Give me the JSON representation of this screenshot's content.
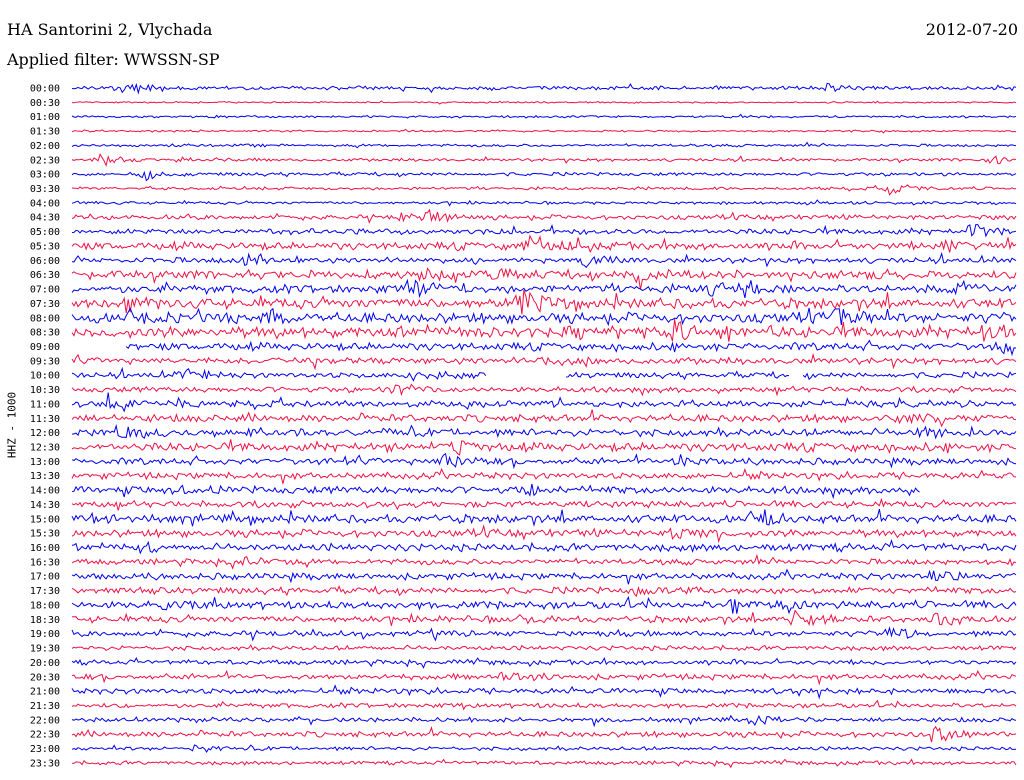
{
  "header": {
    "station": "HA Santorini 2, Vlychada",
    "filter": "Applied filter: WWSSN-SP",
    "date": "2012-07-20"
  },
  "chart_data": {
    "type": "line",
    "title": "HA Santorini 2, Vlychada",
    "subtitle": "Applied filter: WWSSN-SP",
    "date": "2012-07-20",
    "ylabel": "HHZ - 1000",
    "trace_labels": [
      "00:00",
      "00:30",
      "01:00",
      "01:30",
      "02:00",
      "02:30",
      "03:00",
      "03:30",
      "04:00",
      "04:30",
      "05:00",
      "05:30",
      "06:00",
      "06:30",
      "07:00",
      "07:30",
      "08:00",
      "08:30",
      "09:00",
      "09:30",
      "10:00",
      "10:30",
      "11:00",
      "11:30",
      "12:00",
      "12:30",
      "13:00",
      "13:30",
      "14:00",
      "14:30",
      "15:00",
      "15:30",
      "16:00",
      "16:30",
      "17:00",
      "17:30",
      "18:00",
      "18:30",
      "19:00",
      "19:30",
      "20:00",
      "20:30",
      "21:00",
      "21:30",
      "22:00",
      "22:30",
      "23:00",
      "23:30"
    ],
    "series_colors": [
      "#0000ee",
      "#ee1144"
    ],
    "trace_minutes": 30,
    "noise_level": [
      0.2,
      0.08,
      0.12,
      0.1,
      0.14,
      0.16,
      0.18,
      0.16,
      0.15,
      0.25,
      0.3,
      0.4,
      0.3,
      0.45,
      0.45,
      0.55,
      0.55,
      0.6,
      0.4,
      0.35,
      0.3,
      0.3,
      0.35,
      0.4,
      0.4,
      0.45,
      0.35,
      0.35,
      0.4,
      0.35,
      0.45,
      0.4,
      0.4,
      0.3,
      0.35,
      0.35,
      0.4,
      0.35,
      0.3,
      0.25,
      0.25,
      0.3,
      0.3,
      0.25,
      0.25,
      0.3,
      0.2,
      0.2
    ],
    "events": [
      {
        "trace": "00:00",
        "minute": 1.4,
        "amp": 0.5
      },
      {
        "trace": "00:00",
        "minute": 2.2,
        "amp": 0.35
      },
      {
        "trace": "00:00",
        "minute": 24.0,
        "amp": 0.3
      },
      {
        "trace": "02:30",
        "minute": 0.9,
        "amp": 0.7
      },
      {
        "trace": "02:30",
        "minute": 3.5,
        "amp": 0.35
      },
      {
        "trace": "02:30",
        "minute": 29.2,
        "amp": 0.5
      },
      {
        "trace": "03:00",
        "minute": 2.2,
        "amp": 0.45
      },
      {
        "trace": "03:30",
        "minute": 26.0,
        "amp": 0.6
      },
      {
        "trace": "04:30",
        "minute": 10.5,
        "amp": 0.5
      },
      {
        "trace": "04:30",
        "minute": 11.4,
        "amp": 0.5
      },
      {
        "trace": "05:00",
        "minute": 28.6,
        "amp": 0.7
      },
      {
        "trace": "05:30",
        "minute": 14.5,
        "amp": 1.1
      },
      {
        "trace": "05:30",
        "minute": 27.8,
        "amp": 0.5
      },
      {
        "trace": "06:00",
        "minute": 5.6,
        "amp": 0.6
      },
      {
        "trace": "06:00",
        "minute": 16.3,
        "amp": 0.6
      },
      {
        "trace": "06:30",
        "minute": 11.0,
        "amp": 0.6
      },
      {
        "trace": "06:30",
        "minute": 13.6,
        "amp": 0.6
      },
      {
        "trace": "06:30",
        "minute": 18.0,
        "amp": 0.6
      },
      {
        "trace": "06:30",
        "minute": 25.7,
        "amp": 0.5
      },
      {
        "trace": "07:00",
        "minute": 10.9,
        "amp": 0.5
      },
      {
        "trace": "07:00",
        "minute": 20.3,
        "amp": 0.6
      },
      {
        "trace": "07:00",
        "minute": 21.3,
        "amp": 0.5
      },
      {
        "trace": "07:00",
        "minute": 28.0,
        "amp": 0.6
      },
      {
        "trace": "07:30",
        "minute": 1.7,
        "amp": 0.5
      },
      {
        "trace": "07:30",
        "minute": 14.2,
        "amp": 1.6
      },
      {
        "trace": "08:00",
        "minute": 6.2,
        "amp": 0.7
      },
      {
        "trace": "08:00",
        "minute": 24.3,
        "amp": 0.8
      },
      {
        "trace": "08:30",
        "minute": 19.2,
        "amp": 0.9
      },
      {
        "trace": "08:30",
        "minute": 20.8,
        "amp": 0.5
      },
      {
        "trace": "08:30",
        "minute": 29.0,
        "amp": 0.6
      },
      {
        "trace": "09:00",
        "minute": 29.5,
        "amp": 0.6
      },
      {
        "trace": "09:30",
        "minute": 15.0,
        "amp": 0.5
      },
      {
        "trace": "10:00",
        "minute": 3.6,
        "amp": 0.6
      },
      {
        "trace": "10:00",
        "minute": 10.9,
        "amp": 0.5
      },
      {
        "trace": "10:30",
        "minute": 10.3,
        "amp": 0.5
      },
      {
        "trace": "11:00",
        "minute": 1.2,
        "amp": 0.5
      },
      {
        "trace": "11:00",
        "minute": 3.4,
        "amp": 0.4
      },
      {
        "trace": "11:30",
        "minute": 26.2,
        "amp": 0.4
      },
      {
        "trace": "12:00",
        "minute": 1.6,
        "amp": 0.5
      },
      {
        "trace": "12:00",
        "minute": 27.0,
        "amp": 0.6
      },
      {
        "trace": "12:30",
        "minute": 12.2,
        "amp": 0.4
      },
      {
        "trace": "13:00",
        "minute": 11.8,
        "amp": 0.6
      },
      {
        "trace": "13:00",
        "minute": 19.2,
        "amp": 0.4
      },
      {
        "trace": "14:00",
        "minute": 14.4,
        "amp": 0.8
      },
      {
        "trace": "14:00",
        "minute": 3.0,
        "amp": 0.3
      },
      {
        "trace": "15:00",
        "minute": 0.7,
        "amp": 0.5
      },
      {
        "trace": "15:00",
        "minute": 22.0,
        "amp": 0.5
      },
      {
        "trace": "15:30",
        "minute": 19.0,
        "amp": 0.6
      },
      {
        "trace": "16:00",
        "minute": 2.2,
        "amp": 0.4
      },
      {
        "trace": "16:30",
        "minute": 5.5,
        "amp": 0.4
      },
      {
        "trace": "17:00",
        "minute": 27.4,
        "amp": 0.6
      },
      {
        "trace": "17:30",
        "minute": 18.0,
        "amp": 0.5
      },
      {
        "trace": "18:00",
        "minute": 3.0,
        "amp": 0.6
      },
      {
        "trace": "18:00",
        "minute": 21.0,
        "amp": 0.6
      },
      {
        "trace": "18:00",
        "minute": 22.8,
        "amp": 0.4
      },
      {
        "trace": "18:30",
        "minute": 23.0,
        "amp": 0.8
      },
      {
        "trace": "18:30",
        "minute": 14.0,
        "amp": 0.5
      },
      {
        "trace": "18:30",
        "minute": 27.5,
        "amp": 0.5
      },
      {
        "trace": "19:00",
        "minute": 26.0,
        "amp": 0.6
      },
      {
        "trace": "20:30",
        "minute": 13.8,
        "amp": 0.5
      },
      {
        "trace": "22:00",
        "minute": 21.8,
        "amp": 0.5
      },
      {
        "trace": "22:30",
        "minute": 27.4,
        "amp": 0.7
      },
      {
        "trace": "23:00",
        "minute": 4.0,
        "amp": 0.3
      }
    ],
    "gaps": [
      {
        "trace": "09:00",
        "from_minute": 0.0,
        "to_minute": 1.7
      },
      {
        "trace": "10:00",
        "from_minute": 13.2,
        "to_minute": 15.7
      },
      {
        "trace": "10:00",
        "from_minute": 22.8,
        "to_minute": 23.2
      },
      {
        "trace": "14:00",
        "from_minute": 27.0,
        "to_minute": 30.0
      }
    ]
  }
}
